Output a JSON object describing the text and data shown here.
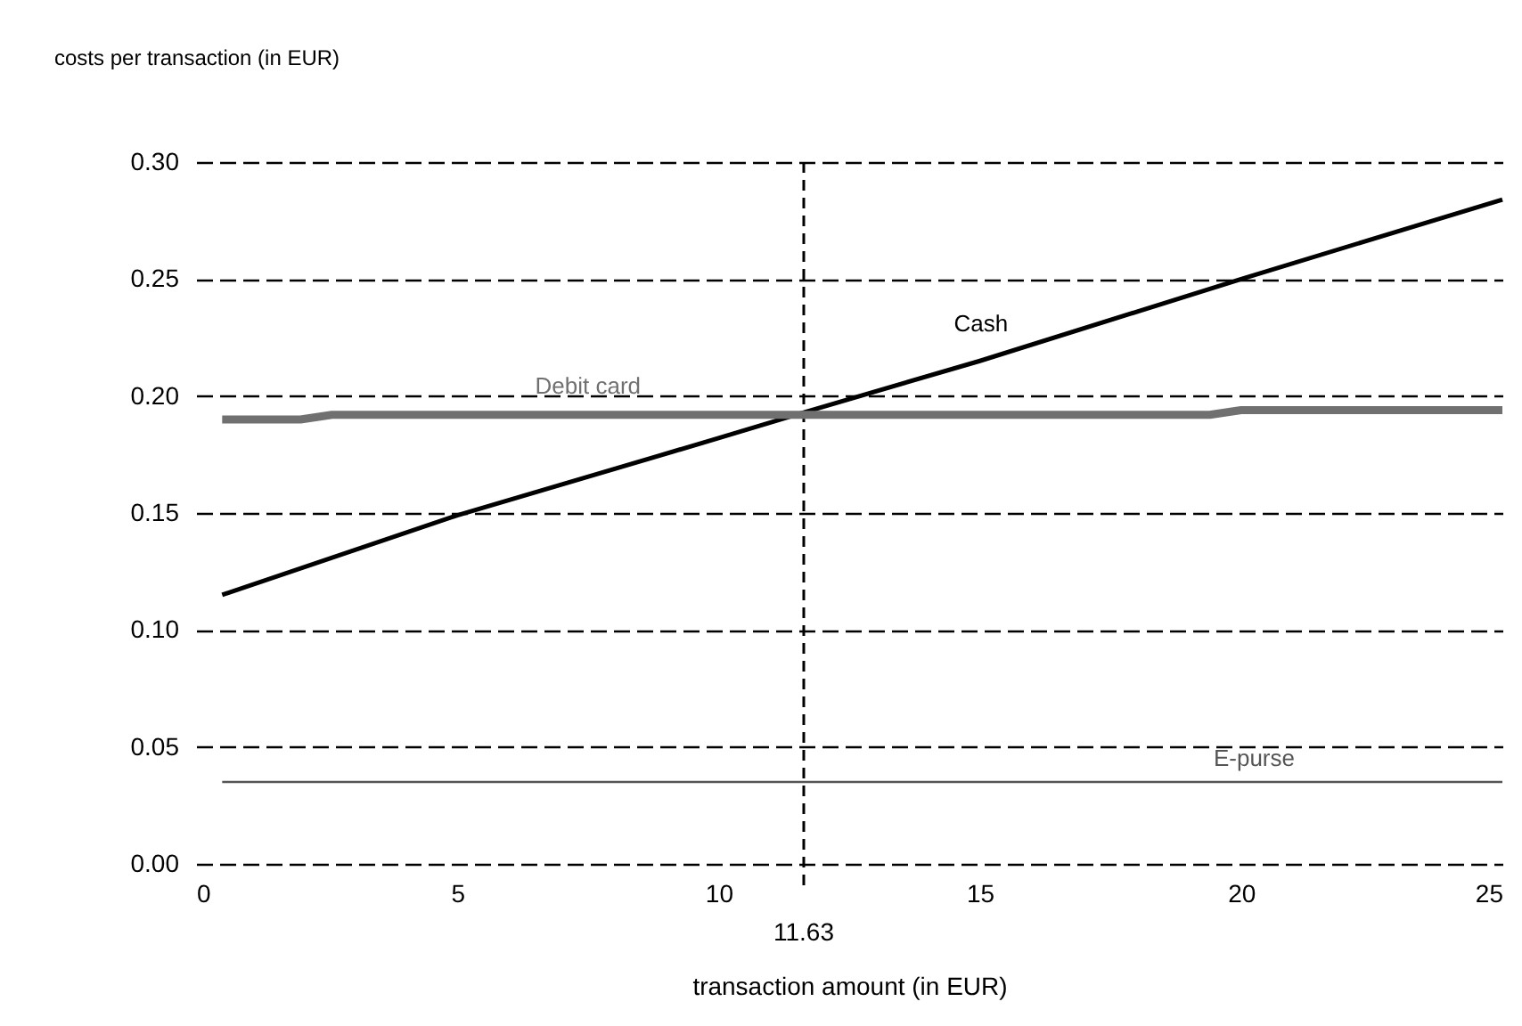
{
  "chart_data": {
    "type": "line",
    "xlabel": "transaction amount (in EUR)",
    "ylabel": "costs per transaction (in EUR)",
    "series": [
      {
        "name": "Cash",
        "color": "#000000",
        "x": [
          0.5,
          5,
          10,
          11.63,
          15,
          20,
          25
        ],
        "values": [
          0.115,
          0.149,
          0.182,
          0.193,
          0.215,
          0.25,
          0.284
        ]
      },
      {
        "name": "Debit card",
        "color": "#707070",
        "x": [
          0.5,
          2,
          2.6,
          19.4,
          20,
          25
        ],
        "values": [
          0.19,
          0.19,
          0.192,
          0.192,
          0.194,
          0.194
        ]
      },
      {
        "name": "E-purse",
        "color": "#555555",
        "x": [
          0.5,
          25
        ],
        "values": [
          0.035,
          0.035
        ]
      }
    ],
    "xlim": [
      0,
      25
    ],
    "xticks": [
      0,
      5,
      10,
      15,
      20,
      25
    ],
    "ylim": [
      0,
      0.3
    ],
    "yticks": [
      {
        "value": 0,
        "label": "0.00"
      },
      {
        "value": 0.05,
        "label": "0.05"
      },
      {
        "value": 0.1,
        "label": "0.10"
      },
      {
        "value": 0.15,
        "label": "0.15"
      },
      {
        "value": 0.2,
        "label": "0.20"
      },
      {
        "value": 0.25,
        "label": "0.25"
      },
      {
        "value": 0.3,
        "label": "0.30"
      }
    ],
    "ref_lines": [
      {
        "axis": "x",
        "value": 11.63,
        "label": "11.63",
        "line_style": "dashed",
        "color": "#000000"
      }
    ],
    "grid": "y",
    "marker": "none",
    "line_style": "solid"
  }
}
